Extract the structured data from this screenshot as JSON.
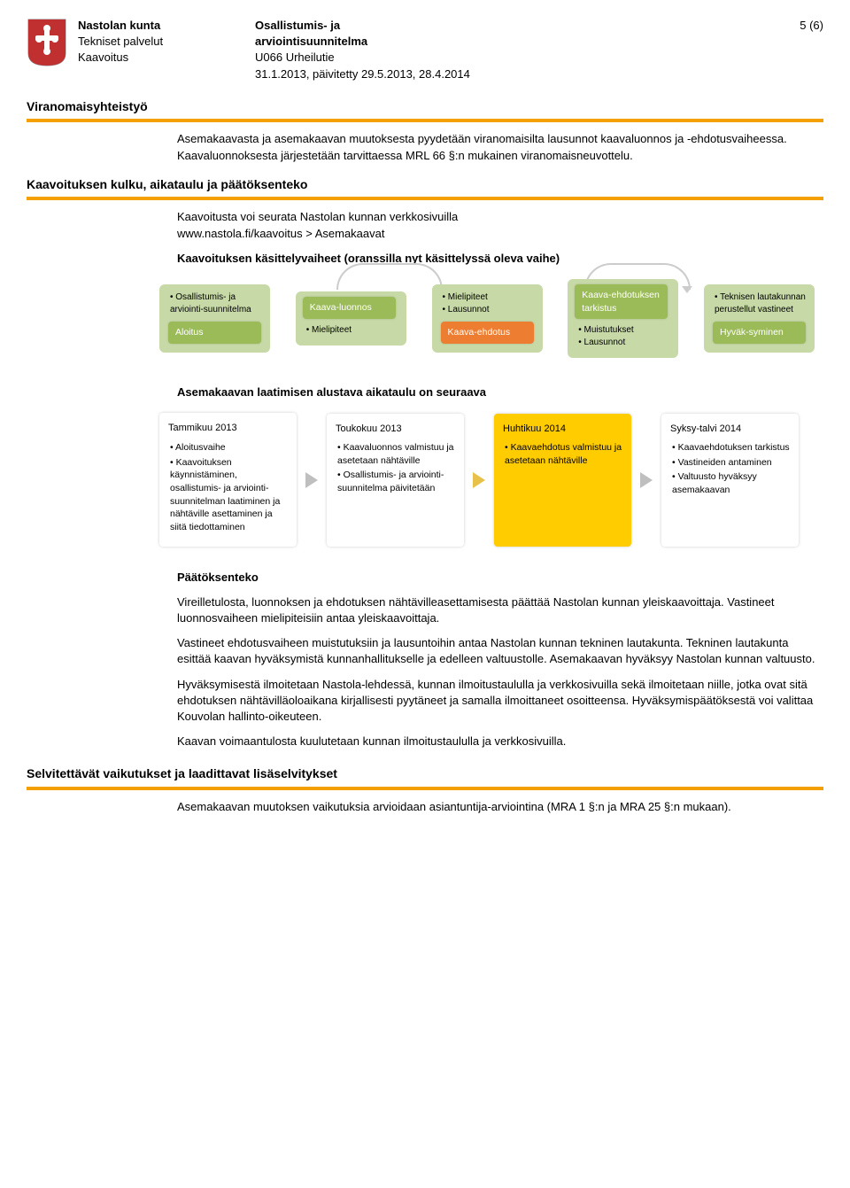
{
  "header": {
    "left": {
      "l1": "Nastolan kunta",
      "l2": "Tekniset palvelut",
      "l3": "Kaavoitus"
    },
    "mid": {
      "l1": "Osallistumis- ja",
      "l2": "arviointisuunnitelma",
      "l3": "U066 Urheilutie",
      "l4": "31.1.2013, päivitetty 29.5.2013, 28.4.2014"
    },
    "right": "5 (6)"
  },
  "colors": {
    "green_fill": "#c6d9a6",
    "green_label": "#9bbb59",
    "yellow_fill": "#ffcc00",
    "arrow_gray": "#bfbfbf",
    "arrow_yellow": "#e8c14a",
    "orange_bar": "#f4a000"
  },
  "sec1": {
    "title": "Viranomaisyhteistyö",
    "p1": "Asemakaavasta ja asemakaavan muutoksesta pyydetään viranomaisilta lausunnot kaavaluonnos ja -ehdotusvaiheessa. Kaavaluonnoksesta järjestetään tarvittaessa MRL 66 §:n mukainen viranomaisneuvottelu."
  },
  "sec2": {
    "title": "Kaavoituksen kulku, aikataulu ja päätöksenteko",
    "p1": "Kaavoitusta voi seurata Nastolan kunnan verkkosivuilla",
    "p2": "www.nastola.fi/kaavoitus > Asemakaavat",
    "p3": "Kaavoituksen käsittelyvaiheet (oranssilla nyt käsittelyssä oleva vaihe)"
  },
  "flow": [
    {
      "top": "",
      "items": [
        "Osallistumis- ja arviointi-suunnitelma"
      ],
      "bottom": "Aloitus",
      "bottom_bg": "#9bbb59",
      "bottom_color": "#fff"
    },
    {
      "top": "Kaava-luonnos",
      "top_bg": "#9bbb59",
      "top_color": "#fff",
      "items": [
        "Mielipiteet"
      ],
      "bottom": ""
    },
    {
      "top": "",
      "items": [
        "Mielipiteet",
        "Lausunnot"
      ],
      "bottom": "Kaava-ehdotus",
      "bottom_bg": "#ed7d31",
      "bottom_color": "#fff"
    },
    {
      "top": "Kaava-ehdotuksen tarkistus",
      "top_bg": "#9bbb59",
      "top_color": "#fff",
      "items": [
        "Muistutukset",
        "Lausunnot"
      ],
      "bottom": ""
    },
    {
      "top": "",
      "items": [
        "Teknisen lautakunnan perustellut vastineet"
      ],
      "bottom": "Hyväk-syminen",
      "bottom_bg": "#9bbb59",
      "bottom_color": "#fff"
    }
  ],
  "sec3": {
    "title": "Asemakaavan laatimisen alustava aikataulu on seuraava"
  },
  "timeline": [
    {
      "title": "Tammikuu  2013",
      "bg": "#ffffff",
      "items": [
        "Aloitusvaihe",
        "Kaavoituksen käynnistäminen, osallistumis- ja arviointi-suunnitelman laatiminen ja nähtäville asettaminen ja siitä tiedottaminen"
      ]
    },
    {
      "title": "Toukokuu 2013",
      "bg": "#ffffff",
      "items": [
        "Kaavaluonnos valmistuu ja asetetaan nähtäville",
        "Osallistumis- ja arviointi-suunnitelma päivitetään"
      ]
    },
    {
      "title": "Huhtikuu 2014",
      "bg": "#ffcc00",
      "items": [
        "Kaavaehdotus valmistuu ja asetetaan nähtäville"
      ]
    },
    {
      "title": "Syksy-talvi 2014",
      "bg": "#ffffff",
      "items": [
        "Kaavaehdotuksen tarkistus",
        "Vastineiden antaminen",
        "Valtuusto hyväksyy asemakaavan"
      ]
    }
  ],
  "dec": {
    "title": "Päätöksenteko",
    "p1": "Vireilletulosta, luonnoksen ja ehdotuksen nähtävilleasettamisesta päättää Nastolan kunnan yleiskaavoittaja. Vastineet luonnosvaiheen mielipiteisiin antaa yleiskaavoittaja.",
    "p2": "Vastineet ehdotusvaiheen muistutuksiin ja lausuntoihin antaa Nastolan kunnan tekninen lautakunta. Tekninen lautakunta esittää kaavan hyväksymistä kunnanhallitukselle ja edelleen valtuustolle. Asemakaavan hyväksyy Nastolan kunnan valtuusto.",
    "p3": "Hyväksymisestä ilmoitetaan Nastola-lehdessä, kunnan ilmoitustaululla ja verkkosivuilla sekä ilmoitetaan niille, jotka ovat sitä ehdotuksen nähtävilläoloaikana kirjallisesti pyytäneet ja samalla ilmoittaneet osoitteensa. Hyväksymispäätöksestä voi valittaa Kouvolan hallinto-oikeuteen.",
    "p4": "Kaavan voimaantulosta kuulutetaan kunnan ilmoitustaululla ja verkkosivuilla."
  },
  "sec4": {
    "title": "Selvitettävät vaikutukset ja laadittavat lisäselvitykset",
    "p1": "Asemakaavan muutoksen vaikutuksia arvioidaan asiantuntija-arviointina (MRA 1 §:n ja MRA 25 §:n mukaan)."
  }
}
